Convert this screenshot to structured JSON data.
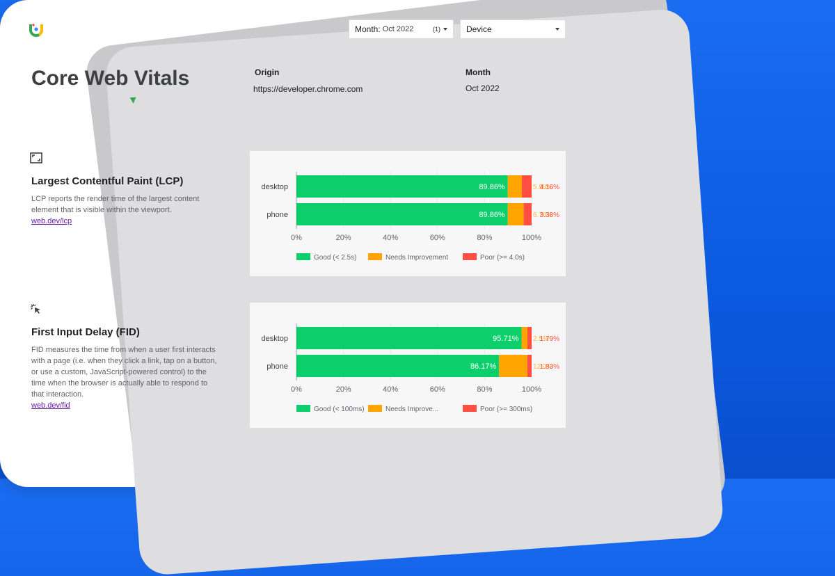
{
  "colors": {
    "good": "#0cce6b",
    "needs": "#ffa400",
    "poor": "#ff4e42",
    "link": "#681da8"
  },
  "header": {
    "month_label": "Month:",
    "month_value": "Oct 2022",
    "month_count": "(1)",
    "device_label": "Device"
  },
  "page": {
    "title": "Core Web Vitals",
    "origin_heading": "Origin",
    "origin_value": "https://developer.chrome.com",
    "month_heading": "Month",
    "month_value": "Oct 2022"
  },
  "lcp": {
    "icon": "crop-frame-icon",
    "title": "Largest Contentful Paint (LCP)",
    "description": "LCP reports the render time of the largest content element that is visible within the viewport.",
    "link": "web.dev/lcp"
  },
  "fid": {
    "icon": "cursor-click-icon",
    "title": "First Input Delay (FID)",
    "description": "FID measures the time from when a user first interacts with a page (i.e. when they click a link, tap on a button, or use a custom, JavaScript-powered control) to the time when the browser is actually able to respond to that interaction.",
    "link": "web.dev/fid"
  },
  "chart_data": [
    {
      "type": "bar",
      "orientation": "horizontal",
      "stacked": true,
      "categories": [
        "desktop",
        "phone"
      ],
      "series": [
        {
          "name": "Good (< 2.5s)",
          "values": [
            89.86,
            89.86
          ],
          "labels": [
            "89.86%",
            "89.86%"
          ]
        },
        {
          "name": "Needs Improvement",
          "values": [
            5.98,
            6.76
          ],
          "labels": [
            "5.98%",
            "6.76%"
          ]
        },
        {
          "name": "Poor (>= 4.0s)",
          "values": [
            4.16,
            3.38
          ],
          "labels": [
            "4.16%",
            "3.38%"
          ]
        }
      ],
      "x_ticks": [
        "0%",
        "20%",
        "40%",
        "60%",
        "80%",
        "100%"
      ],
      "xlim": [
        0,
        100
      ],
      "legend": "bottom"
    },
    {
      "type": "bar",
      "orientation": "horizontal",
      "stacked": true,
      "categories": [
        "desktop",
        "phone"
      ],
      "series": [
        {
          "name": "Good (< 100ms)",
          "values": [
            95.71,
            86.17
          ],
          "labels": [
            "95.71%",
            "86.17%"
          ]
        },
        {
          "name": "Needs Improve...",
          "values": [
            2.5,
            12.0
          ],
          "labels": [
            "2.5%",
            "12.0%"
          ]
        },
        {
          "name": "Poor (>= 300ms)",
          "values": [
            1.79,
            1.83
          ],
          "labels": [
            "1.79%",
            "1.83%"
          ]
        }
      ],
      "x_ticks": [
        "0%",
        "20%",
        "40%",
        "60%",
        "80%",
        "100%"
      ],
      "xlim": [
        0,
        100
      ],
      "legend": "bottom"
    }
  ]
}
